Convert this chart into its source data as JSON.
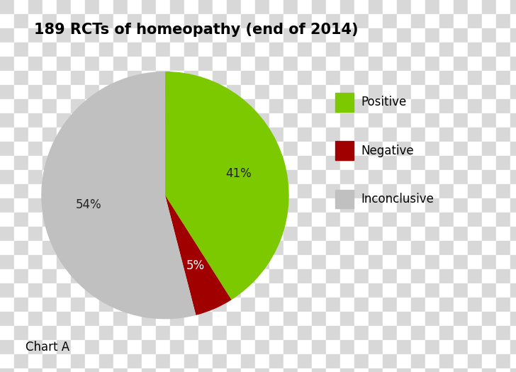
{
  "title": "189 RCTs of homeopathy (end of 2014)",
  "labels": [
    "Positive",
    "Negative",
    "Inconclusive"
  ],
  "values": [
    41,
    5,
    54
  ],
  "pct_labels": [
    "41%",
    "5%",
    "54%"
  ],
  "colors": [
    "#7dc900",
    "#a00000",
    "#c0c0c0"
  ],
  "legend_labels": [
    "Positive",
    "Negative",
    "Inconclusive"
  ],
  "legend_colors": [
    "#7dc900",
    "#a00000",
    "#c0c0c0"
  ],
  "chart_label": "Chart A",
  "title_fontsize": 15,
  "label_fontsize": 12,
  "legend_fontsize": 12,
  "startangle": 90,
  "checker_size": 20,
  "checker_light": "#d8d8d8",
  "checker_dark": "#ffffff",
  "fig_width": 7.28,
  "fig_height": 5.25
}
